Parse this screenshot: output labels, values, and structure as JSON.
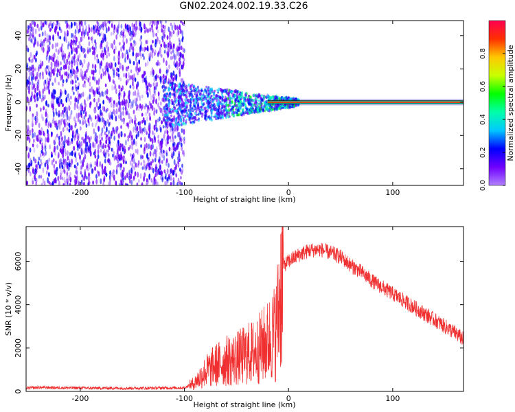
{
  "title": "GN02.2024.002.19.33.C26",
  "chart_data": [
    {
      "type": "heatmap",
      "xlabel": "Height of straight line (km)",
      "ylabel": "Frequency (Hz)",
      "xlim": [
        -252,
        168
      ],
      "ylim": [
        -50,
        49
      ],
      "xticks": [
        -200,
        -100,
        0,
        100
      ],
      "yticks": [
        -40,
        -20,
        0,
        20,
        40
      ],
      "grid": false,
      "colorbar": {
        "label": "Normalized spectral amplitude",
        "range": [
          0,
          1
        ],
        "ticks": [
          0.0,
          0.2,
          0.4,
          0.6,
          0.8
        ],
        "colormap": [
          "#b080ff",
          "#7000ff",
          "#0000ff",
          "#00c8ff",
          "#00ffaa",
          "#00ff00",
          "#c8ff00",
          "#ffc800",
          "#ff3000",
          "#ff0050"
        ]
      },
      "features": [
        {
          "region": "noise",
          "x_range": [
            -252,
            -100
          ],
          "freq_range": [
            -50,
            49
          ],
          "amplitude": 0.15
        },
        {
          "region": "transition",
          "x_range": [
            -120,
            10
          ],
          "freq_range": [
            -28,
            10
          ],
          "amplitude": 0.3
        },
        {
          "region": "carrier",
          "x_range": [
            -20,
            168
          ],
          "freq": 0,
          "amplitude": 0.9
        }
      ]
    },
    {
      "type": "line",
      "xlabel": "Height of straight line (km)",
      "ylabel": "SNR (10 * v/v)",
      "xlim": [
        -252,
        168
      ],
      "ylim": [
        0,
        7600
      ],
      "xticks": [
        -200,
        -100,
        0,
        100
      ],
      "yticks": [
        0,
        2000,
        4000,
        6000
      ],
      "grid": false,
      "color": "#f03030",
      "series": [
        {
          "x": [
            -252,
            -240,
            -220,
            -200,
            -180,
            -160,
            -140,
            -120,
            -100,
            -90,
            -80,
            -70,
            -60,
            -50,
            -40,
            -30,
            -20,
            -12,
            -8,
            -5,
            0,
            10,
            20,
            30,
            40,
            50,
            60,
            70,
            80,
            90,
            100,
            110,
            120,
            130,
            140,
            150,
            160,
            168
          ],
          "y": [
            150,
            180,
            170,
            160,
            150,
            150,
            150,
            160,
            170,
            400,
            900,
            1200,
            1400,
            1500,
            1700,
            1900,
            2300,
            2800,
            4500,
            5800,
            6000,
            6300,
            6500,
            6550,
            6400,
            6200,
            5800,
            5500,
            5100,
            4800,
            4500,
            4200,
            3900,
            3600,
            3300,
            3000,
            2700,
            2400
          ]
        }
      ]
    }
  ]
}
